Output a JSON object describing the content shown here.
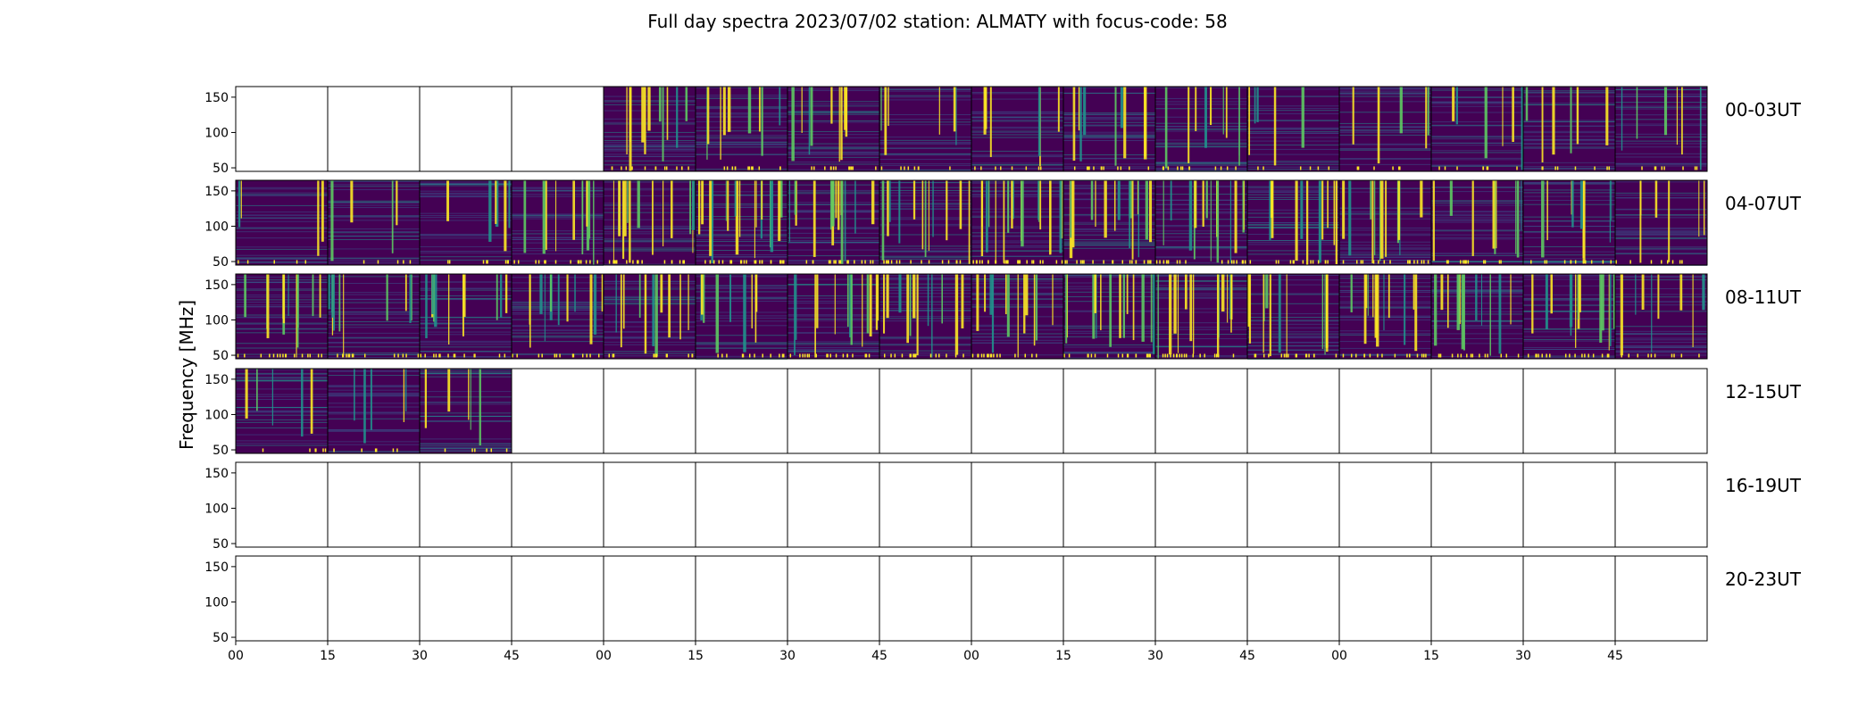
{
  "chart_data": {
    "type": "heatmap",
    "title": "Full day spectra 2023/07/02 station: ALMATY with focus-code: 58",
    "ylabel": "Frequency [MHz]",
    "xlabel": "",
    "yticks": [
      50,
      100,
      150
    ],
    "ylim": [
      45,
      165
    ],
    "xticks": [
      "00",
      "15",
      "30",
      "45",
      "00",
      "15",
      "30",
      "45",
      "00",
      "15",
      "30",
      "45",
      "00",
      "15",
      "30",
      "45"
    ],
    "colormap": [
      "#440154",
      "#3b528b",
      "#21918c",
      "#5ec962",
      "#fde725"
    ],
    "panels_per_row": 16,
    "rows": [
      {
        "label": "00-03UT",
        "data_panels": [
          4,
          5,
          6,
          7,
          8,
          9,
          10,
          11,
          12,
          13,
          14,
          15
        ],
        "activity": [
          0,
          0,
          0,
          0,
          0.35,
          0.3,
          0.3,
          0.2,
          0.2,
          0.3,
          0.3,
          0.15,
          0.15,
          0.2,
          0.2,
          0.2
        ]
      },
      {
        "label": "04-07UT",
        "data_panels": [
          0,
          1,
          2,
          3,
          4,
          5,
          6,
          7,
          8,
          9,
          10,
          11,
          12,
          13,
          14,
          15
        ],
        "activity": [
          0.12,
          0.12,
          0.2,
          0.35,
          0.45,
          0.6,
          0.45,
          0.4,
          0.6,
          0.5,
          0.45,
          0.35,
          0.4,
          0.3,
          0.3,
          0.2
        ]
      },
      {
        "label": "08-11UT",
        "data_panels": [
          0,
          1,
          2,
          3,
          4,
          5,
          6,
          7,
          8,
          9,
          10,
          11,
          12,
          13,
          14,
          15
        ],
        "activity": [
          0.4,
          0.35,
          0.35,
          0.4,
          0.35,
          0.3,
          0.45,
          0.4,
          0.4,
          0.45,
          0.45,
          0.4,
          0.4,
          0.4,
          0.45,
          0.25
        ]
      },
      {
        "label": "12-15UT",
        "data_panels": [
          0,
          1,
          2
        ],
        "activity": [
          0.15,
          0.15,
          0.15,
          0,
          0,
          0,
          0,
          0,
          0,
          0,
          0,
          0,
          0,
          0,
          0,
          0
        ]
      },
      {
        "label": "16-19UT",
        "data_panels": [],
        "activity": []
      },
      {
        "label": "20-23UT",
        "data_panels": [],
        "activity": []
      }
    ]
  }
}
